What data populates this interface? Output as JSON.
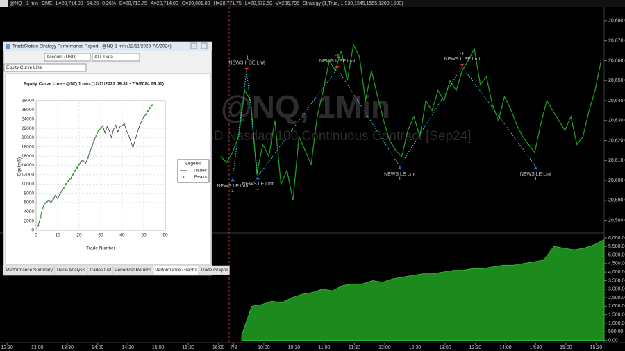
{
  "status_bar": [
    "@NQ - 1 min",
    "CME",
    "L=20,714.00",
    "54.25",
    "0.26%",
    "B=20,713.75",
    "A=20,714.00",
    "O=20,601.00",
    "H=20,771.75",
    "L=20,672.50",
    "V=206,795",
    "Strategy (1,True,-1,930,1545,1555,1200,1500)"
  ],
  "watermark": {
    "symbol": "@NQ, 1Min",
    "description": "USD Nasdaq 100 Continuous Contract [Sep24]"
  },
  "report_window": {
    "title": "TradeStation Strategy Performance Report - @NQ 1 min (12/11/2023-7/9/2024)",
    "account": "Account (USD)",
    "range": "ALL Data",
    "graph": "Equity Curve Line",
    "tabs": [
      "Performance Summary",
      "Trade Analysis",
      "Trades List",
      "Periodical Returns",
      "Performance Graphs",
      "Trade Graphs"
    ],
    "active_tab": "Performance Graphs",
    "legend_title": "Legend"
  },
  "chart_data": [
    {
      "type": "line",
      "color": "#1f9a1f",
      "x": [
        212,
        218,
        224,
        230,
        236,
        242,
        248,
        254,
        260,
        266,
        272,
        278,
        284,
        290,
        296,
        302,
        308,
        314,
        320,
        326,
        332,
        338,
        344,
        350,
        356,
        362,
        368,
        374,
        380,
        386,
        392,
        398,
        404,
        410,
        416,
        422,
        428,
        434,
        440,
        446,
        452,
        458,
        464,
        470,
        476,
        482,
        488,
        494,
        500,
        506,
        512,
        518,
        524,
        530,
        536,
        542,
        548,
        554,
        560,
        566,
        572,
        578,
        584,
        590
      ],
      "values": [
        20612,
        20609,
        20614,
        20622,
        20645,
        20640,
        20603,
        20618,
        20612,
        20630,
        20598,
        20605,
        20590,
        20622,
        20615,
        20608,
        20632,
        20645,
        20660,
        20655,
        20665,
        20650,
        20668,
        20662,
        20640,
        20655,
        20642,
        20630,
        20620,
        20615,
        20612,
        20625,
        20632,
        20622,
        20640,
        20635,
        20645,
        20640,
        20650,
        20645,
        20655,
        20660,
        20666,
        20648,
        20652,
        20638,
        20630,
        20642,
        20636,
        20628,
        20622,
        20618,
        20614,
        20628,
        20640,
        20635,
        20630,
        20625,
        20632,
        20618,
        20622,
        20635,
        20645,
        20660
      ],
      "xlim": [
        -7,
        593
      ],
      "xticks": [
        {
          "value": 0,
          "label": "12:30"
        },
        {
          "value": 30,
          "label": "13:00"
        },
        {
          "value": 60,
          "label": "13:30"
        },
        {
          "value": 90,
          "label": "14:00"
        },
        {
          "value": 120,
          "label": "14:30"
        },
        {
          "value": 150,
          "label": "15:00"
        },
        {
          "value": 180,
          "label": "15:30"
        },
        {
          "value": 210,
          "label": "16:00"
        },
        {
          "value": 225,
          "label": "7/8"
        },
        {
          "value": 255,
          "label": "10:00"
        },
        {
          "value": 285,
          "label": "10:30"
        },
        {
          "value": 315,
          "label": "11:00"
        },
        {
          "value": 345,
          "label": "11:30"
        },
        {
          "value": 375,
          "label": "12:00"
        },
        {
          "value": 405,
          "label": "12:30"
        },
        {
          "value": 435,
          "label": "13:00"
        },
        {
          "value": 465,
          "label": "13:30"
        },
        {
          "value": 495,
          "label": "14:00"
        },
        {
          "value": 525,
          "label": "14:30"
        },
        {
          "value": 555,
          "label": "15:00"
        },
        {
          "value": 585,
          "label": "15:30"
        }
      ],
      "ylim": [
        20575,
        20689
      ],
      "yticks": [
        {
          "value": 20580,
          "label": "20,580.00"
        },
        {
          "value": 20590,
          "label": "20,590.00"
        },
        {
          "value": 20600,
          "label": "20,600.00"
        },
        {
          "value": 20610,
          "label": "20,610.00"
        },
        {
          "value": 20620,
          "label": "20,620.00"
        },
        {
          "value": 20630,
          "label": "20,630.00"
        },
        {
          "value": 20640,
          "label": "20,640.00"
        },
        {
          "value": 20650,
          "label": "20,650.00"
        },
        {
          "value": 20660,
          "label": "20,660.00"
        },
        {
          "value": 20670,
          "label": "20,670.00"
        },
        {
          "value": 20680,
          "label": "20,680.00"
        }
      ],
      "annotations": [
        {
          "text": "NEWS LE Lmt",
          "qty": 1,
          "x": 224,
          "y": 20601
        },
        {
          "text": "NEWS II SE Lmt",
          "qty": -1,
          "x": 238,
          "y": 20655
        },
        {
          "text": "NEWS LE Lmt",
          "qty": 1,
          "x": 249,
          "y": 20602
        },
        {
          "text": "NEWS II SE Lmt",
          "qty": -1,
          "x": 328,
          "y": 20656
        },
        {
          "text": "NEWS LE Lmt",
          "qty": 1,
          "x": 390,
          "y": 20607
        },
        {
          "text": "NEWS II SE Lmt",
          "qty": -1,
          "x": 452,
          "y": 20657
        },
        {
          "text": "NEWS LE Lmt",
          "qty": 1,
          "x": 525,
          "y": 20607
        }
      ]
    },
    {
      "type": "area",
      "color": "#1d8a1d",
      "x": [
        233,
        243,
        253,
        263,
        273,
        283,
        293,
        303,
        313,
        323,
        333,
        343,
        353,
        363,
        373,
        383,
        393,
        403,
        413,
        423,
        433,
        443,
        453,
        463,
        473,
        483,
        493,
        503,
        513,
        523,
        533,
        543,
        553,
        563,
        573,
        583,
        593
      ],
      "values": [
        300,
        2000,
        2100,
        2300,
        2200,
        2500,
        2700,
        2800,
        3000,
        2900,
        3200,
        3300,
        3300,
        3500,
        3400,
        3600,
        3700,
        3800,
        3900,
        3900,
        4000,
        4100,
        4100,
        4200,
        4200,
        4300,
        4400,
        4400,
        4500,
        4600,
        4700,
        5500,
        5400,
        5300,
        5400,
        5600,
        5900
      ],
      "xlim": [
        -7,
        593
      ],
      "ylim": [
        -100,
        6200
      ],
      "yticks": [
        {
          "value": 0,
          "label": "0.00"
        },
        {
          "value": 500,
          "label": "500.00"
        },
        {
          "value": 1000,
          "label": "1,000.00"
        },
        {
          "value": 1500,
          "label": "1,500.00"
        },
        {
          "value": 2000,
          "label": "2,000.00"
        },
        {
          "value": 2500,
          "label": "2,500.00"
        },
        {
          "value": 3000,
          "label": "3,000.00"
        },
        {
          "value": 3500,
          "label": "3,500.00"
        },
        {
          "value": 4000,
          "label": "4,000.00"
        },
        {
          "value": 4500,
          "label": "4,500.00"
        },
        {
          "value": 5000,
          "label": "5,000.00"
        },
        {
          "value": 5500,
          "label": "5,500.00"
        },
        {
          "value": 6000,
          "label": "6,000.00"
        }
      ]
    },
    {
      "type": "line",
      "title": "Equity Curve Line - @NQ 1 min.(12/11/2023 09:31 - 7/9/2024 09:55)",
      "xlabel": "Trade Number",
      "ylabel": "Equity($)",
      "grid": true,
      "x": [
        1,
        2,
        3,
        4,
        5,
        6,
        7,
        8,
        9,
        10,
        11,
        12,
        13,
        14,
        15,
        16,
        17,
        18,
        19,
        20,
        21,
        22,
        23,
        24,
        25,
        26,
        27,
        28,
        29,
        30,
        31,
        32,
        33,
        34,
        35,
        36,
        37,
        38,
        39,
        40,
        41,
        42,
        43,
        44,
        45,
        46,
        47,
        48,
        49,
        50,
        51,
        52,
        53,
        54
      ],
      "series": [
        {
          "name": "Trades",
          "color": "#333333",
          "mode": "line",
          "values": [
            1000,
            2800,
            4800,
            5800,
            6200,
            6400,
            6000,
            6800,
            7500,
            6800,
            7800,
            8500,
            9200,
            10000,
            10600,
            11200,
            12000,
            12800,
            13500,
            14200,
            15000,
            15000,
            14400,
            15600,
            17000,
            18200,
            19500,
            20500,
            21500,
            22000,
            22500,
            21000,
            22400,
            21500,
            20000,
            21800,
            22600,
            21200,
            22400,
            22600,
            23000,
            21500,
            20500,
            19200,
            17800,
            19500,
            21000,
            22500,
            23500,
            24500,
            25000,
            25800,
            26500,
            27000
          ]
        },
        {
          "name": "Peaks",
          "color": "#3cb043",
          "mode": "markers",
          "values": [
            1000,
            2800,
            4800,
            5800,
            6200,
            6400,
            null,
            6800,
            7500,
            null,
            7800,
            8500,
            9200,
            10000,
            10600,
            11200,
            12000,
            12800,
            13500,
            14200,
            15000,
            null,
            null,
            15600,
            17000,
            18200,
            19500,
            20500,
            21500,
            22000,
            22500,
            null,
            null,
            null,
            null,
            null,
            22600,
            null,
            null,
            null,
            23000,
            null,
            null,
            null,
            null,
            null,
            null,
            null,
            23500,
            24500,
            25000,
            25800,
            26500,
            27000
          ]
        }
      ],
      "xlim": [
        0,
        60
      ],
      "xticks": [
        0,
        10,
        20,
        30,
        40,
        50,
        60
      ],
      "ylim": [
        0,
        28000
      ],
      "yticks": [
        0,
        2000,
        4000,
        6000,
        8000,
        10000,
        12000,
        14000,
        16000,
        18000,
        20000,
        22000,
        24000,
        26000,
        28000
      ]
    }
  ]
}
